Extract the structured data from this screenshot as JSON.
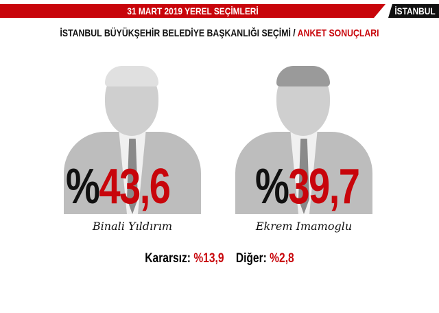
{
  "header": {
    "title": "31 MART 2019 YEREL SEÇİMLERİ",
    "city": "İSTANBUL"
  },
  "subtitle": {
    "main": "İSTANBUL BÜYÜKŞEHİR BELEDİYE BAŞKANLIĞI SEÇİMİ /",
    "highlight": "ANKET SONUÇLARI"
  },
  "candidates": [
    {
      "name": "Binali Yıldırım",
      "percent_symbol": "%",
      "value": "43,6"
    },
    {
      "name": "Ekrem Imamoglu",
      "percent_symbol": "%",
      "value": "39,7"
    }
  ],
  "others": {
    "undecided_label": "Kararsız:",
    "undecided_value": "%13,9",
    "other_label": "Diğer:",
    "other_value": "%2,8"
  },
  "colors": {
    "accent": "#c8050b",
    "dark": "#111111"
  }
}
